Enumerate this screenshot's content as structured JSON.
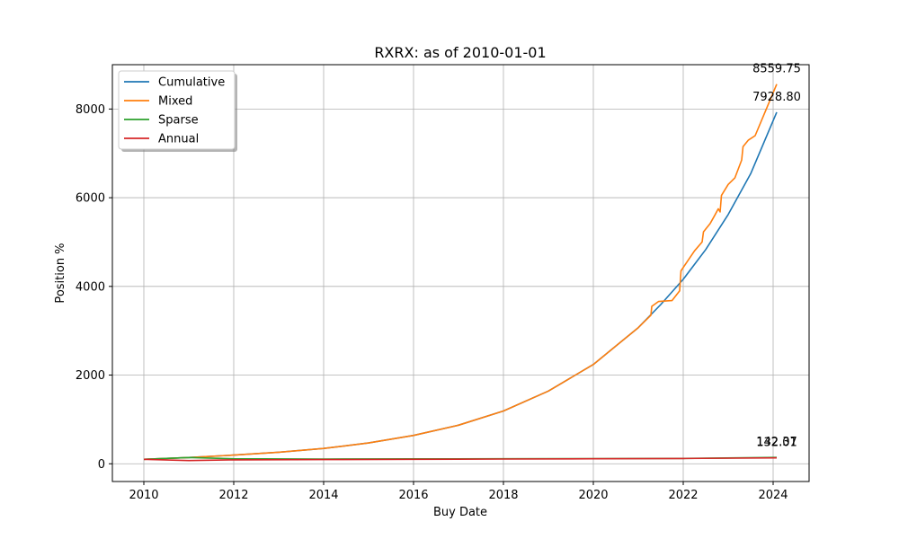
{
  "chart_data": {
    "type": "line",
    "title": "RXRX: as of 2010-01-01",
    "xlabel": "Buy Date",
    "ylabel": "Position %",
    "xlim": [
      2009.3,
      2024.8
    ],
    "ylim": [
      -400,
      9000
    ],
    "x_ticks": [
      2010,
      2012,
      2014,
      2016,
      2018,
      2020,
      2022,
      2024
    ],
    "y_ticks": [
      0,
      2000,
      4000,
      6000,
      8000
    ],
    "x_tick_labels": [
      "2010",
      "2012",
      "2014",
      "2016",
      "2018",
      "2020",
      "2022",
      "2024"
    ],
    "y_tick_labels": [
      "0",
      "2000",
      "4000",
      "6000",
      "8000"
    ],
    "grid": true,
    "legend_position": "upper-left",
    "series": [
      {
        "name": "Cumulative",
        "color": "#1f77b4",
        "x": [
          2010.0,
          2011.0,
          2012.0,
          2013.0,
          2014.0,
          2015.0,
          2016.0,
          2017.0,
          2018.0,
          2019.0,
          2020.0,
          2021.0,
          2021.5,
          2022.0,
          2022.5,
          2023.0,
          2023.5,
          2024.08
        ],
        "y": [
          100,
          140,
          195,
          260,
          345,
          470,
          640,
          870,
          1190,
          1640,
          2240,
          3070,
          3590,
          4160,
          4830,
          5620,
          6540,
          7928.8
        ]
      },
      {
        "name": "Mixed",
        "color": "#ff7f0e",
        "x": [
          2010.0,
          2011.0,
          2012.0,
          2013.0,
          2014.0,
          2015.0,
          2016.0,
          2017.0,
          2018.0,
          2019.0,
          2020.0,
          2021.0,
          2021.28,
          2021.3,
          2021.45,
          2021.75,
          2021.92,
          2021.95,
          2022.25,
          2022.42,
          2022.45,
          2022.6,
          2022.7,
          2022.78,
          2022.82,
          2022.85,
          2023.0,
          2023.15,
          2023.3,
          2023.33,
          2023.45,
          2023.6,
          2024.08
        ],
        "y": [
          100,
          140,
          195,
          260,
          345,
          470,
          640,
          870,
          1190,
          1640,
          2240,
          3070,
          3350,
          3550,
          3660,
          3680,
          3900,
          4350,
          4800,
          5000,
          5230,
          5420,
          5600,
          5750,
          5680,
          6050,
          6300,
          6450,
          6850,
          7150,
          7300,
          7400,
          8559.75
        ]
      },
      {
        "name": "Sparse",
        "color": "#2ca02c",
        "x": [
          2010.0,
          2011.0,
          2012.0,
          2014.0,
          2016.0,
          2018.0,
          2020.0,
          2022.0,
          2024.08
        ],
        "y": [
          100,
          140,
          112,
          106,
          110,
          113,
          117,
          121,
          142.37
        ]
      },
      {
        "name": "Annual",
        "color": "#d62728",
        "x": [
          2010.0,
          2011.0,
          2012.0,
          2014.0,
          2016.0,
          2018.0,
          2020.0,
          2022.0,
          2024.08
        ],
        "y": [
          100,
          72,
          88,
          94,
          100,
          106,
          112,
          118,
          132.01
        ]
      }
    ],
    "end_labels": [
      {
        "series": "Mixed",
        "text": "8559.75",
        "x": 2024.08,
        "y": 8559.75
      },
      {
        "series": "Cumulative",
        "text": "7928.80",
        "x": 2024.08,
        "y": 7928.8
      },
      {
        "series": "Sparse",
        "text": "142.37",
        "x": 2024.08,
        "y": 142.37
      },
      {
        "series": "Annual",
        "text": "132.01",
        "x": 2024.08,
        "y": 132.01
      }
    ]
  }
}
